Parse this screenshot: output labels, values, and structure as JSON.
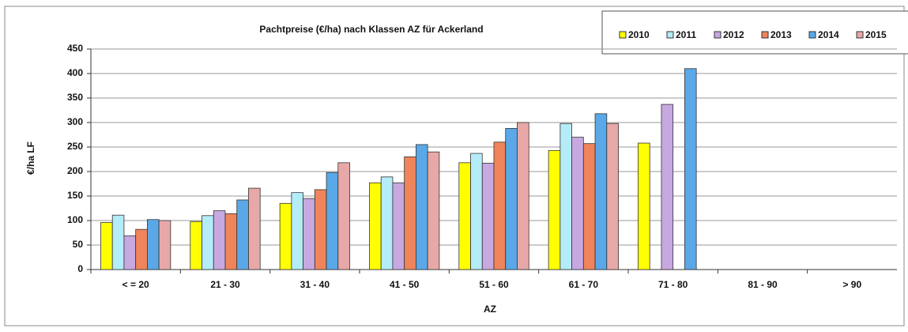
{
  "chart_data": {
    "type": "bar",
    "title": "Pachtpreise (€/ha) nach Klassen AZ für Ackerland",
    "x_label": "AZ",
    "y_label": "€/ha LF",
    "categories": [
      "< = 20",
      "21 - 30",
      "31 - 40",
      "41 - 50",
      "51 - 60",
      "61 - 70",
      "71 - 80",
      "81 - 90",
      "> 90"
    ],
    "series": [
      {
        "name": "2010",
        "color": "#ffff00",
        "values": [
          96,
          98,
          135,
          177,
          218,
          243,
          258,
          null,
          null
        ]
      },
      {
        "name": "2011",
        "color": "#b4ecf8",
        "values": [
          111,
          110,
          157,
          189,
          237,
          298,
          null,
          null,
          null
        ]
      },
      {
        "name": "2012",
        "color": "#c8a8e0",
        "values": [
          69,
          120,
          145,
          177,
          217,
          270,
          337,
          null,
          null
        ]
      },
      {
        "name": "2013",
        "color": "#f0845a",
        "values": [
          82,
          114,
          163,
          230,
          260,
          257,
          null,
          null,
          null
        ]
      },
      {
        "name": "2014",
        "color": "#5aa8e8",
        "values": [
          102,
          142,
          198,
          255,
          288,
          318,
          410,
          null,
          null
        ]
      },
      {
        "name": "2015",
        "color": "#e8a8a8",
        "values": [
          100,
          166,
          218,
          240,
          300,
          298,
          null,
          null,
          null
        ]
      }
    ],
    "ylim": [
      0,
      450
    ],
    "yticks": [
      0,
      50,
      100,
      150,
      200,
      250,
      300,
      350,
      400,
      450
    ],
    "grid": true,
    "legend": "top-right"
  }
}
